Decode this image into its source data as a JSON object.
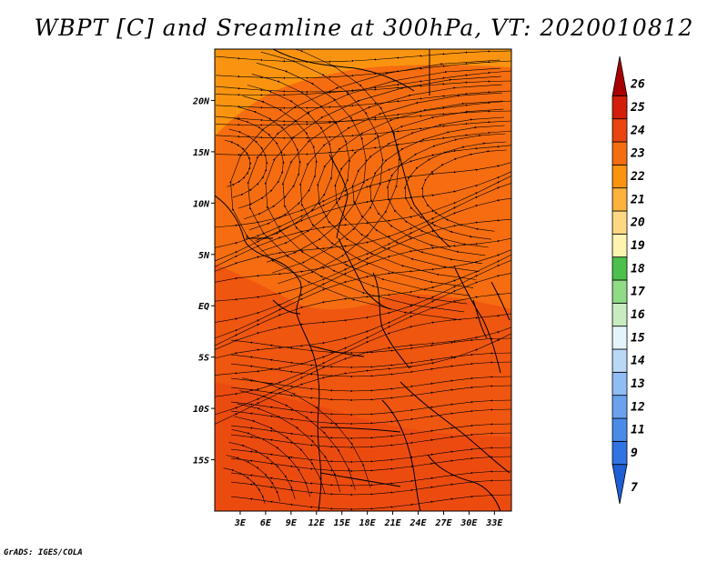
{
  "title": "WBPT [C] and Sreamline at 300hPa, VT: 2020010812",
  "credit": "GrADS: IGES/COLA",
  "map": {
    "lat_labels": [
      "20N",
      "15N",
      "10N",
      "5N",
      "EQ",
      "5S",
      "10S",
      "15S"
    ],
    "lat_values": [
      20,
      15,
      10,
      5,
      0,
      -5,
      -10,
      -15
    ],
    "lon_labels": [
      "3E",
      "6E",
      "9E",
      "12E",
      "15E",
      "18E",
      "21E",
      "24E",
      "27E",
      "30E",
      "33E"
    ],
    "lon_values": [
      3,
      6,
      9,
      12,
      15,
      18,
      21,
      24,
      27,
      30,
      33
    ],
    "lat_range": [
      -20,
      25
    ],
    "lon_range": [
      0,
      35
    ]
  },
  "colorbar": {
    "labels": [
      "7",
      "9",
      "11",
      "12",
      "13",
      "14",
      "15",
      "16",
      "17",
      "18",
      "19",
      "20",
      "21",
      "22",
      "23",
      "24",
      "25",
      "26"
    ],
    "colors": [
      "#1f5fd6",
      "#2f74e2",
      "#4a8be8",
      "#6aa2ee",
      "#90bdf3",
      "#b9d8f6",
      "#e4f4f8",
      "#c8ecc0",
      "#8fdb86",
      "#4cc04c",
      "#fff3b0",
      "#fdd883",
      "#fcb23c",
      "#fa9410",
      "#f56d10",
      "#ea4410",
      "#d21e0a",
      "#a80000"
    ]
  },
  "field_colors": {
    "c20": "#fcb23c",
    "c21": "#fa9410",
    "c22": "#f56d10",
    "c23": "#ea4410"
  }
}
